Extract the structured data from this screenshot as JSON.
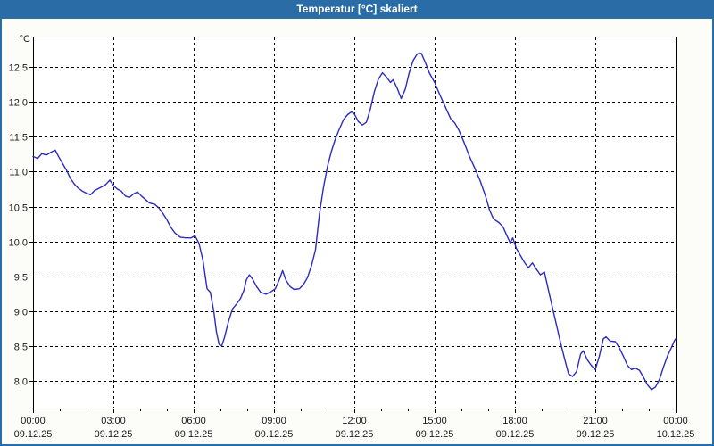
{
  "window": {
    "title": "Temperatur [°C] skaliert"
  },
  "colors": {
    "titlebar": "#2A6DA6",
    "window_border": "#2A6DA6",
    "window_bg": "#FCFCF8",
    "plot_bg": "#FFFFFF",
    "grid": "#000000",
    "frame": "#000000",
    "text": "#1A1A1A",
    "line": "#2B2BC4"
  },
  "chart_data": {
    "type": "line",
    "title": "Temperatur [°C] skaliert",
    "y_unit_label": "°C",
    "ylim": [
      7.6,
      12.94
    ],
    "yticks": [
      {
        "value": 8.0,
        "label": "8,0"
      },
      {
        "value": 8.5,
        "label": "8,5"
      },
      {
        "value": 9.0,
        "label": "9,0"
      },
      {
        "value": 9.5,
        "label": "9,5"
      },
      {
        "value": 10.0,
        "label": "10,0"
      },
      {
        "value": 10.5,
        "label": "10,5"
      },
      {
        "value": 11.0,
        "label": "11,0"
      },
      {
        "value": 11.5,
        "label": "11,5"
      },
      {
        "value": 12.0,
        "label": "12,0"
      },
      {
        "value": 12.5,
        "label": "12,5"
      }
    ],
    "x_range_hours": [
      0,
      24
    ],
    "x_minor_step_hours": 1,
    "x_ticks": [
      {
        "hours": 0,
        "time": "00:00",
        "date": "09.12.25"
      },
      {
        "hours": 3,
        "time": "03:00",
        "date": "09.12.25"
      },
      {
        "hours": 6,
        "time": "06:00",
        "date": "09.12.25"
      },
      {
        "hours": 9,
        "time": "09:00",
        "date": "09.12.25"
      },
      {
        "hours": 12,
        "time": "12:00",
        "date": "09.12.25"
      },
      {
        "hours": 15,
        "time": "15:00",
        "date": "09.12.25"
      },
      {
        "hours": 18,
        "time": "18:00",
        "date": "09.12.25"
      },
      {
        "hours": 21,
        "time": "21:00",
        "date": "09.12.25"
      },
      {
        "hours": 24,
        "time": "00:00",
        "date": "10.12.25"
      }
    ],
    "grid": true,
    "legend": "none",
    "series": [
      {
        "name": "Temperatur",
        "points": [
          [
            0.0,
            11.22
          ],
          [
            0.17,
            11.19
          ],
          [
            0.33,
            11.26
          ],
          [
            0.5,
            11.24
          ],
          [
            0.67,
            11.28
          ],
          [
            0.83,
            11.31
          ],
          [
            0.95,
            11.22
          ],
          [
            1.1,
            11.12
          ],
          [
            1.25,
            11.02
          ],
          [
            1.4,
            10.9
          ],
          [
            1.55,
            10.82
          ],
          [
            1.7,
            10.76
          ],
          [
            1.85,
            10.72
          ],
          [
            2.0,
            10.69
          ],
          [
            2.15,
            10.67
          ],
          [
            2.3,
            10.73
          ],
          [
            2.5,
            10.77
          ],
          [
            2.7,
            10.81
          ],
          [
            2.87,
            10.88
          ],
          [
            3.0,
            10.8
          ],
          [
            3.15,
            10.75
          ],
          [
            3.3,
            10.72
          ],
          [
            3.45,
            10.65
          ],
          [
            3.6,
            10.63
          ],
          [
            3.75,
            10.68
          ],
          [
            3.9,
            10.71
          ],
          [
            4.05,
            10.65
          ],
          [
            4.2,
            10.6
          ],
          [
            4.35,
            10.55
          ],
          [
            4.55,
            10.53
          ],
          [
            4.7,
            10.48
          ],
          [
            4.85,
            10.4
          ],
          [
            5.0,
            10.31
          ],
          [
            5.15,
            10.2
          ],
          [
            5.3,
            10.12
          ],
          [
            5.5,
            10.06
          ],
          [
            5.7,
            10.05
          ],
          [
            5.9,
            10.05
          ],
          [
            6.05,
            10.08
          ],
          [
            6.2,
            9.97
          ],
          [
            6.35,
            9.72
          ],
          [
            6.5,
            9.32
          ],
          [
            6.62,
            9.27
          ],
          [
            6.75,
            9.0
          ],
          [
            6.85,
            8.7
          ],
          [
            6.95,
            8.52
          ],
          [
            7.05,
            8.5
          ],
          [
            7.15,
            8.62
          ],
          [
            7.3,
            8.85
          ],
          [
            7.45,
            9.03
          ],
          [
            7.6,
            9.1
          ],
          [
            7.75,
            9.18
          ],
          [
            7.88,
            9.3
          ],
          [
            7.97,
            9.45
          ],
          [
            8.08,
            9.52
          ],
          [
            8.2,
            9.46
          ],
          [
            8.35,
            9.35
          ],
          [
            8.5,
            9.27
          ],
          [
            8.7,
            9.24
          ],
          [
            8.9,
            9.28
          ],
          [
            9.05,
            9.32
          ],
          [
            9.2,
            9.45
          ],
          [
            9.32,
            9.58
          ],
          [
            9.45,
            9.44
          ],
          [
            9.6,
            9.35
          ],
          [
            9.75,
            9.31
          ],
          [
            9.95,
            9.32
          ],
          [
            10.1,
            9.38
          ],
          [
            10.25,
            9.48
          ],
          [
            10.4,
            9.65
          ],
          [
            10.55,
            9.88
          ],
          [
            10.7,
            10.4
          ],
          [
            10.85,
            10.78
          ],
          [
            11.0,
            11.08
          ],
          [
            11.15,
            11.3
          ],
          [
            11.3,
            11.48
          ],
          [
            11.45,
            11.62
          ],
          [
            11.6,
            11.75
          ],
          [
            11.75,
            11.82
          ],
          [
            11.9,
            11.86
          ],
          [
            12.0,
            11.83
          ],
          [
            12.15,
            11.72
          ],
          [
            12.3,
            11.67
          ],
          [
            12.45,
            11.71
          ],
          [
            12.6,
            11.9
          ],
          [
            12.75,
            12.15
          ],
          [
            12.9,
            12.33
          ],
          [
            13.05,
            12.42
          ],
          [
            13.2,
            12.36
          ],
          [
            13.35,
            12.28
          ],
          [
            13.45,
            12.32
          ],
          [
            13.6,
            12.2
          ],
          [
            13.75,
            12.05
          ],
          [
            13.9,
            12.18
          ],
          [
            14.05,
            12.42
          ],
          [
            14.2,
            12.6
          ],
          [
            14.35,
            12.69
          ],
          [
            14.5,
            12.7
          ],
          [
            14.65,
            12.57
          ],
          [
            14.8,
            12.42
          ],
          [
            15.0,
            12.28
          ],
          [
            15.2,
            12.1
          ],
          [
            15.4,
            11.93
          ],
          [
            15.6,
            11.76
          ],
          [
            15.75,
            11.7
          ],
          [
            15.9,
            11.6
          ],
          [
            16.1,
            11.42
          ],
          [
            16.3,
            11.22
          ],
          [
            16.5,
            11.05
          ],
          [
            16.7,
            10.87
          ],
          [
            16.9,
            10.65
          ],
          [
            17.05,
            10.45
          ],
          [
            17.2,
            10.32
          ],
          [
            17.4,
            10.27
          ],
          [
            17.55,
            10.21
          ],
          [
            17.7,
            10.08
          ],
          [
            17.82,
            9.98
          ],
          [
            17.92,
            10.05
          ],
          [
            18.05,
            9.9
          ],
          [
            18.2,
            9.8
          ],
          [
            18.35,
            9.7
          ],
          [
            18.5,
            9.62
          ],
          [
            18.65,
            9.69
          ],
          [
            18.8,
            9.6
          ],
          [
            18.95,
            9.52
          ],
          [
            19.1,
            9.56
          ],
          [
            19.25,
            9.3
          ],
          [
            19.4,
            9.05
          ],
          [
            19.55,
            8.8
          ],
          [
            19.7,
            8.55
          ],
          [
            19.85,
            8.32
          ],
          [
            20.0,
            8.1
          ],
          [
            20.15,
            8.06
          ],
          [
            20.3,
            8.13
          ],
          [
            20.45,
            8.38
          ],
          [
            20.55,
            8.43
          ],
          [
            20.7,
            8.3
          ],
          [
            20.85,
            8.22
          ],
          [
            21.0,
            8.16
          ],
          [
            21.15,
            8.35
          ],
          [
            21.3,
            8.6
          ],
          [
            21.4,
            8.63
          ],
          [
            21.55,
            8.57
          ],
          [
            21.75,
            8.56
          ],
          [
            21.9,
            8.47
          ],
          [
            22.05,
            8.35
          ],
          [
            22.2,
            8.22
          ],
          [
            22.35,
            8.16
          ],
          [
            22.5,
            8.18
          ],
          [
            22.65,
            8.15
          ],
          [
            22.8,
            8.05
          ],
          [
            22.95,
            7.94
          ],
          [
            23.1,
            7.87
          ],
          [
            23.25,
            7.91
          ],
          [
            23.4,
            8.02
          ],
          [
            23.55,
            8.2
          ],
          [
            23.7,
            8.36
          ],
          [
            23.85,
            8.48
          ],
          [
            23.95,
            8.57
          ],
          [
            24.0,
            8.6
          ]
        ]
      }
    ]
  }
}
